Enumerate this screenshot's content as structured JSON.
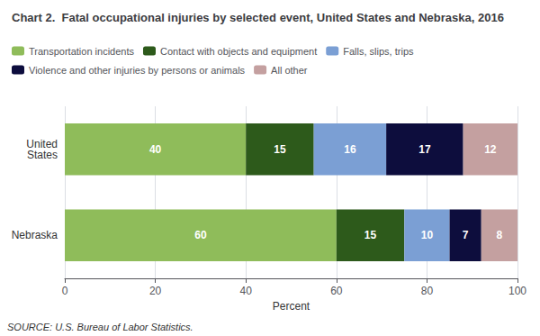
{
  "chart_data": {
    "type": "bar",
    "orientation": "horizontal",
    "stacked": true,
    "title": "Chart 2.  Fatal occupational injuries by selected event, United States and Nebraska, 2016",
    "categories": [
      "United\nStates",
      "Nebraska"
    ],
    "series": [
      {
        "name": "Transportation incidents",
        "color": "#8fbc5a",
        "values": [
          40,
          60
        ]
      },
      {
        "name": "Contact with objects and equipment",
        "color": "#2d5a1b",
        "values": [
          15,
          15
        ]
      },
      {
        "name": "Falls, slips, trips",
        "color": "#7b9fd4",
        "values": [
          16,
          10
        ]
      },
      {
        "name": "Violence and other injuries by persons or animals",
        "color": "#0d0d3d",
        "values": [
          17,
          7
        ]
      },
      {
        "name": "All other",
        "color": "#c4a0a0",
        "values": [
          12,
          8
        ]
      }
    ],
    "xlabel": "Percent",
    "xlim": [
      0,
      100
    ],
    "xticks": [
      0,
      20,
      40,
      60,
      80,
      100
    ],
    "source": "SOURCE: U.S. Bureau of Labor Statistics.",
    "data_labels": true,
    "grid": true,
    "legend": "top"
  }
}
